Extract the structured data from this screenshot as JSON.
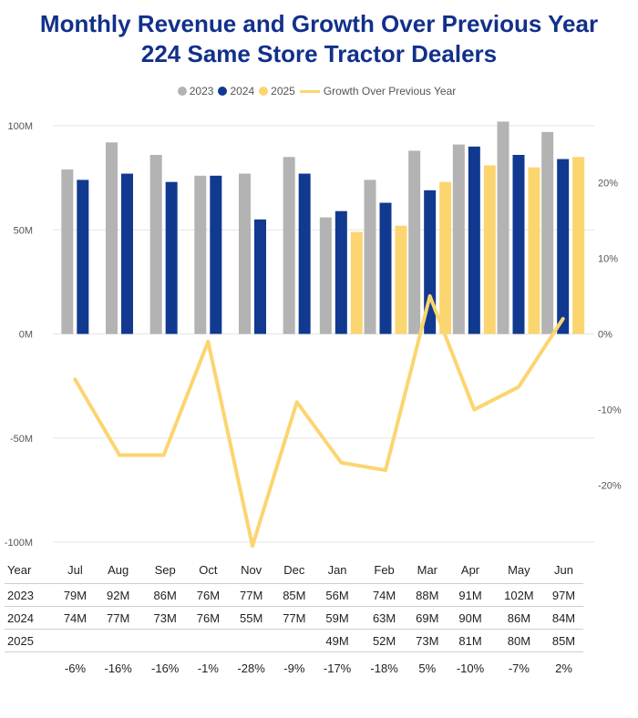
{
  "title_line1": "Monthly Revenue and Growth Over Previous Year",
  "title_line2": "224 Same Store Tractor Dealers",
  "colors": {
    "c2023": "#b3b3b3",
    "c2024": "#11398f",
    "c2025": "#fbd570",
    "growth": "#fbd570",
    "title": "#12308a"
  },
  "legend": [
    {
      "label": "2023",
      "kind": "dot",
      "color": "#b3b3b3"
    },
    {
      "label": "2024",
      "kind": "dot",
      "color": "#11398f"
    },
    {
      "label": "2025",
      "kind": "dot",
      "color": "#fbd570"
    },
    {
      "label": "Growth Over Previous Year",
      "kind": "line",
      "color": "#fbd570"
    }
  ],
  "chart_data": {
    "type": "bar",
    "categories": [
      "Jul",
      "Aug",
      "Sep",
      "Oct",
      "Nov",
      "Dec",
      "Jan",
      "Feb",
      "Mar",
      "Apr",
      "May",
      "Jun"
    ],
    "series": [
      {
        "name": "2023",
        "type": "bar",
        "values": [
          79,
          92,
          86,
          76,
          77,
          85,
          56,
          74,
          88,
          91,
          102,
          97
        ]
      },
      {
        "name": "2024",
        "type": "bar",
        "values": [
          74,
          77,
          73,
          76,
          55,
          77,
          59,
          63,
          69,
          90,
          86,
          84
        ]
      },
      {
        "name": "2025",
        "type": "bar",
        "values": [
          null,
          null,
          null,
          null,
          null,
          null,
          49,
          52,
          73,
          81,
          80,
          85
        ]
      },
      {
        "name": "Growth Over Previous Year",
        "type": "line",
        "axis": "right",
        "values": [
          -6,
          -16,
          -16,
          -1,
          -28,
          -9,
          -17,
          -18,
          5,
          -10,
          -7,
          2
        ]
      }
    ],
    "y_left": {
      "ticks": [
        "100M",
        "50M",
        "0M",
        "-50M",
        "-100M"
      ],
      "tick_values": [
        100,
        50,
        0,
        -50,
        -100
      ],
      "range": [
        -100,
        100
      ]
    },
    "y_right": {
      "ticks": [
        "20%",
        "10%",
        "0%",
        "-10%",
        "-20%"
      ],
      "tick_values": [
        20,
        10,
        0,
        -10,
        -20
      ],
      "range": [
        -27.5,
        27.5
      ]
    },
    "grid": true,
    "legend_position": "top"
  },
  "table": {
    "header": [
      "Year",
      "Jul",
      "Aug",
      "Sep",
      "Oct",
      "Nov",
      "Dec",
      "Jan",
      "Feb",
      "Mar",
      "Apr",
      "May",
      "Jun"
    ],
    "rows": [
      {
        "label": "2023",
        "cells": [
          "79M",
          "92M",
          "86M",
          "76M",
          "77M",
          "85M",
          "56M",
          "74M",
          "88M",
          "91M",
          "102M",
          "97M"
        ]
      },
      {
        "label": "2024",
        "cells": [
          "74M",
          "77M",
          "73M",
          "76M",
          "55M",
          "77M",
          "59M",
          "63M",
          "69M",
          "90M",
          "86M",
          "84M"
        ]
      },
      {
        "label": "2025",
        "cells": [
          "",
          "",
          "",
          "",
          "",
          "",
          "49M",
          "52M",
          "73M",
          "81M",
          "80M",
          "85M"
        ]
      },
      {
        "label": "",
        "cells": [
          "-6%",
          "-16%",
          "-16%",
          "-1%",
          "-28%",
          "-9%",
          "-17%",
          "-18%",
          "5%",
          "-10%",
          "-7%",
          "2%"
        ]
      }
    ]
  }
}
